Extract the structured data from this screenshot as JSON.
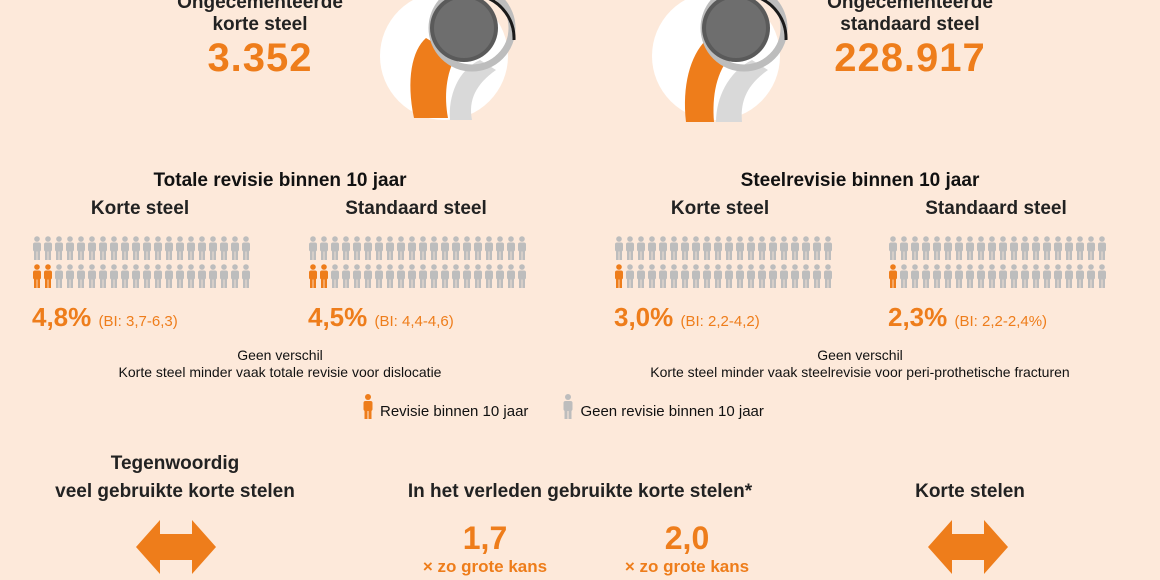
{
  "top": {
    "left": {
      "line1": "Ongecementeerde",
      "line2": "korte steel",
      "count": "3.352"
    },
    "right": {
      "line1": "Ongecementeerde",
      "line2": "standaard steel",
      "count": "228.917"
    }
  },
  "sections": {
    "total": {
      "title": "Totale revisie binnen 10 jaar",
      "short": {
        "label": "Korte steel",
        "percent": "4,8%",
        "ci": "(BI: 3,7-6,3)",
        "revised_fraction": 0.048
      },
      "standard": {
        "label": "Standaard steel",
        "percent": "4,5%",
        "ci": "(BI: 4,4-4,6)",
        "revised_fraction": 0.045
      },
      "note1": "Geen verschil",
      "note2": "Korte steel minder vaak totale revisie voor dislocatie"
    },
    "stem": {
      "title": "Steelrevisie binnen 10 jaar",
      "short": {
        "label": "Korte steel",
        "percent": "3,0%",
        "ci": "(BI: 2,2-4,2)",
        "revised_fraction": 0.03
      },
      "standard": {
        "label": "Standaard steel",
        "percent": "2,3%",
        "ci": "(BI: 2,2-2,4%)",
        "revised_fraction": 0.023
      },
      "note1": "Geen verschil",
      "note2": "Korte steel minder vaak steelrevisie voor peri-prothetische fracturen"
    }
  },
  "legend": {
    "revision": "Revisie binnen 10 jaar",
    "no_revision": "Geen revisie binnen 10 jaar"
  },
  "comparison": {
    "current_line1": "Tegenwoordig",
    "current_line2": "veel gebruikte korte stelen",
    "past": "In het verleden gebruikte korte stelen*",
    "short": "Korte stelen",
    "factor1": "1,7",
    "factor1_label": "× zo grote kans",
    "factor2": "2,0",
    "factor2_label": "× zo grote kans"
  },
  "colors": {
    "accent": "#ee7d1b",
    "person_grey": "#bdbdbd",
    "background": "#fde9da"
  }
}
